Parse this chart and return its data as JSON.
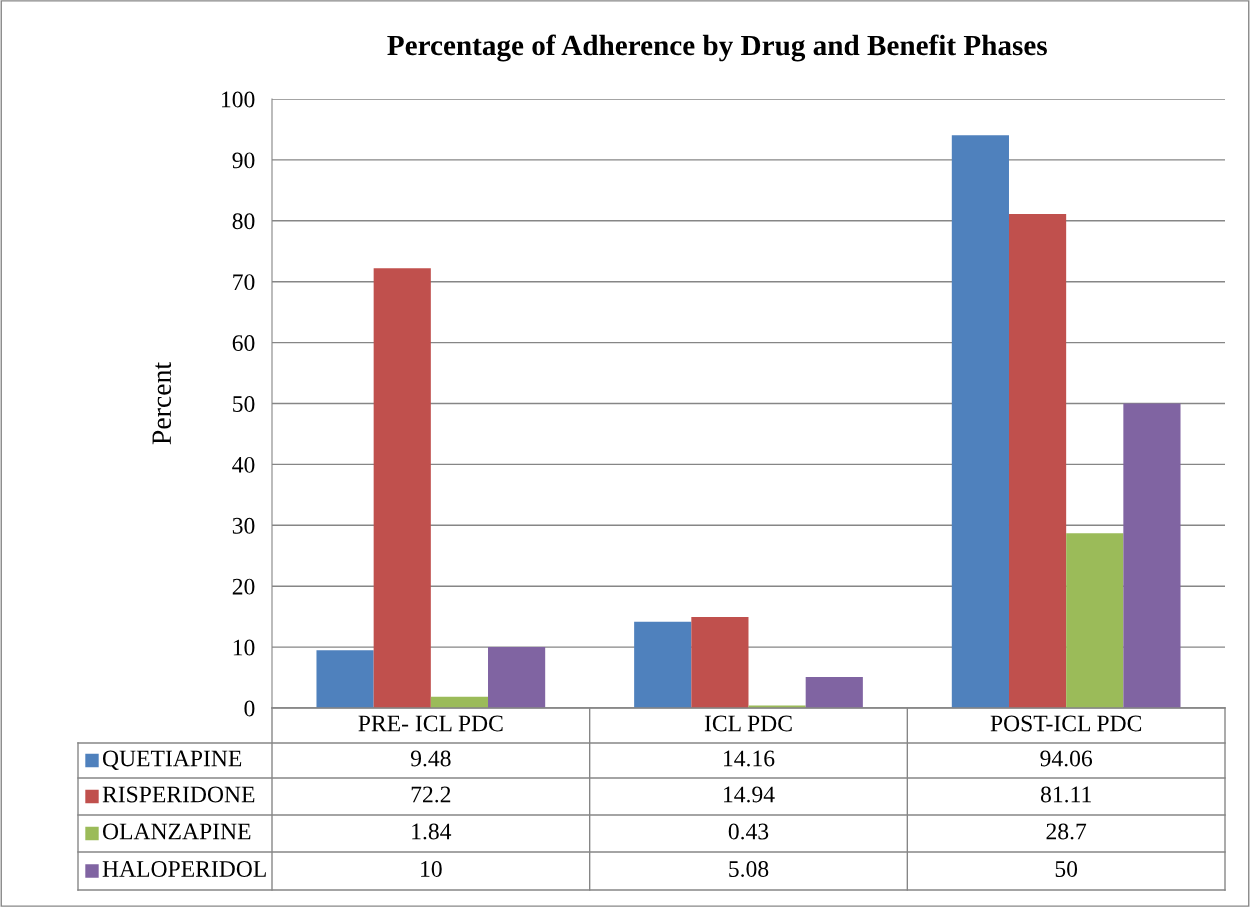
{
  "chart_data": {
    "type": "bar",
    "title": "Percentage of Adherence by Drug and Benefit Phases",
    "ylabel": "Percent",
    "categories": [
      "PRE- ICL PDC",
      "ICL PDC",
      "POST-ICL PDC"
    ],
    "series": [
      {
        "name": "QUETIAPINE",
        "color": "#4f81bd",
        "values": [
          9.48,
          14.16,
          94.06
        ]
      },
      {
        "name": "RISPERIDONE",
        "color": "#c0504d",
        "values": [
          72.2,
          14.94,
          81.11
        ]
      },
      {
        "name": "OLANZAPINE",
        "color": "#9bbb59",
        "values": [
          1.84,
          0.43,
          28.7
        ]
      },
      {
        "name": "HALOPERIDOL",
        "color": "#8064a2",
        "values": [
          10,
          5.08,
          50
        ]
      }
    ],
    "ylim": [
      0,
      100
    ],
    "yticks": [
      0,
      10,
      20,
      30,
      40,
      50,
      60,
      70,
      80,
      90,
      100
    ],
    "grid": "y",
    "legend": "bottom",
    "data_labels": true
  }
}
